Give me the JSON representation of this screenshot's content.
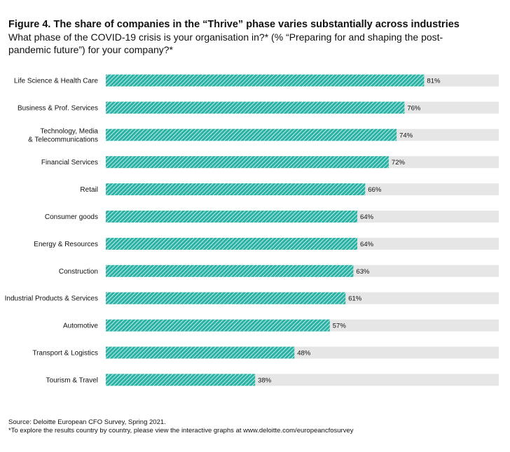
{
  "figure": {
    "title": "Figure 4. The share of companies in the “Thrive” phase varies substantially across industries",
    "subtitle": "What phase of the COVID-19 crisis is your organisation in?* (% “Preparing for and shaping the post-pandemic future”) for your company?*"
  },
  "footer": {
    "source": "Source: Deloitte European CFO Survey, Spring 2021.",
    "note": "*To explore the results country by country, please view the interactive graphs at www.deloitte.com/europeancfosurvey"
  },
  "chart_data": {
    "type": "bar",
    "orientation": "horizontal",
    "title": "Figure 4. The share of companies in the “Thrive” phase varies substantially across industries",
    "subtitle": "What phase of the COVID-19 crisis is your organisation in?* (% “Preparing for and shaping the post-pandemic future”) for your company?*",
    "categories": [
      "Life Science & Health Care",
      "Business & Prof. Services",
      "Technology, Media\n& Telecommunications",
      "Financial Services",
      "Retail",
      "Consumer goods",
      "Energy & Resources",
      "Construction",
      "Industrial Products & Services",
      "Automotive",
      "Transport & Logistics",
      "Tourism & Travel"
    ],
    "values": [
      81,
      76,
      74,
      72,
      66,
      64,
      64,
      63,
      61,
      57,
      48,
      38
    ],
    "value_labels": [
      "81%",
      "76%",
      "74%",
      "72%",
      "66%",
      "64%",
      "64%",
      "63%",
      "61%",
      "57%",
      "48%",
      "38%"
    ],
    "xlim": [
      0,
      100
    ],
    "unit": "%",
    "grid": false,
    "legend": "none",
    "colors": {
      "bar_fill": "#2ab3a5",
      "bar_hatch": "#ffffff",
      "background_bar": "#e6e6e6",
      "text": "#111111"
    }
  }
}
